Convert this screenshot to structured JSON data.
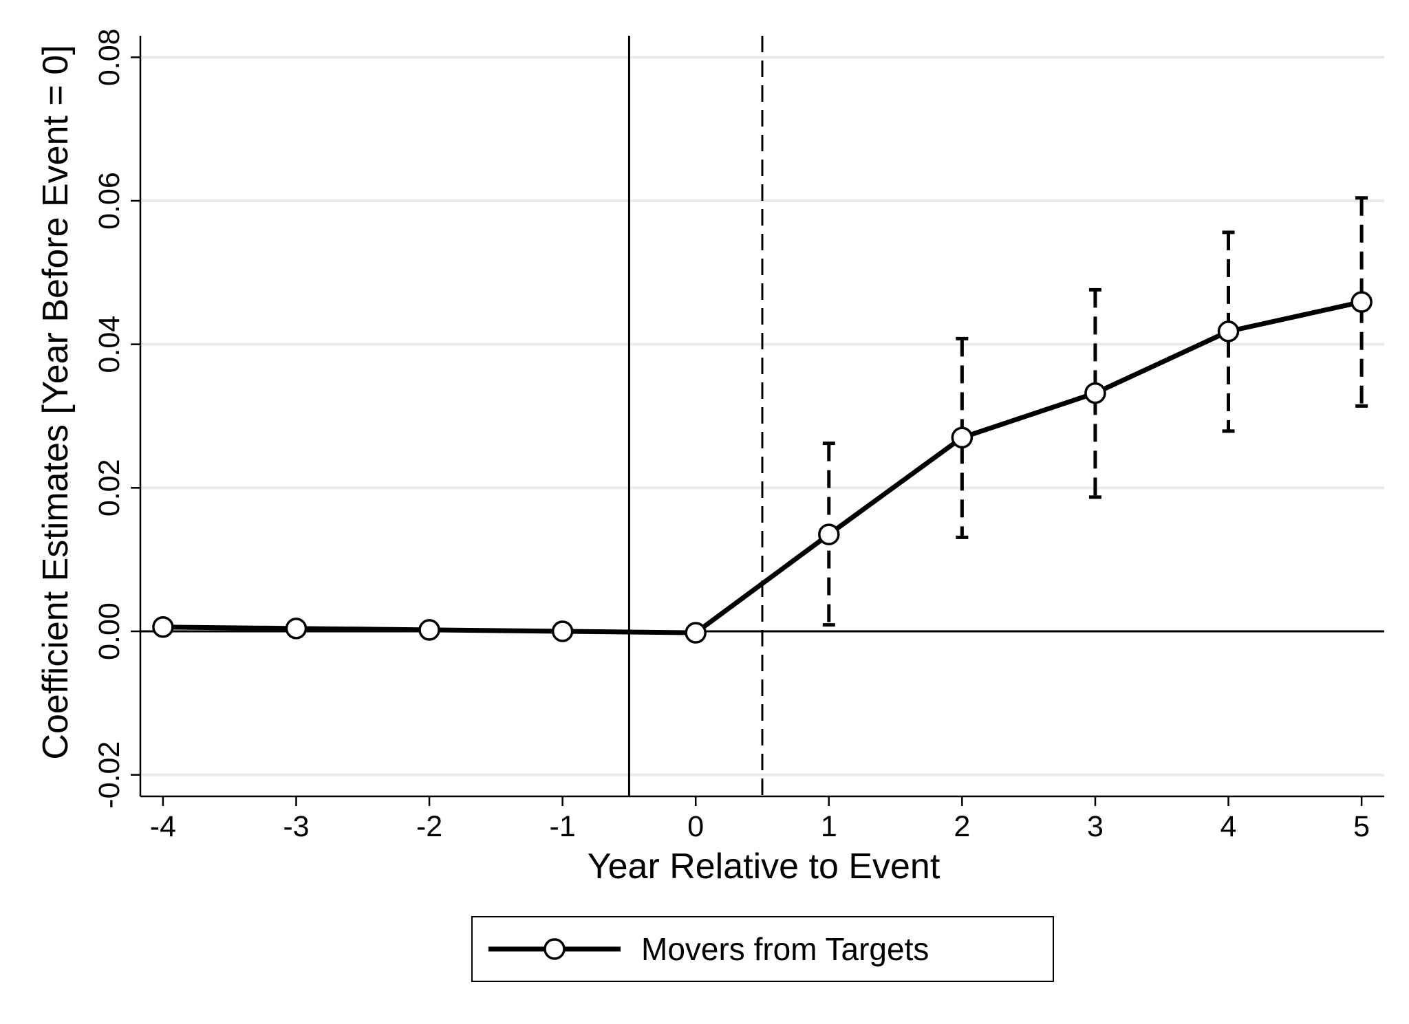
{
  "chart_data": {
    "type": "line",
    "xlabel": "Year Relative to Event",
    "ylabel": "Coefficient Estimates [Year Before Event = 0]",
    "x": [
      -4,
      -3,
      -2,
      -1,
      0,
      1,
      2,
      3,
      4,
      5
    ],
    "x_tick_labels": [
      "-4",
      "-3",
      "-2",
      "-1",
      "0",
      "1",
      "2",
      "3",
      "4",
      "5"
    ],
    "xlim": [
      -4.17,
      5.17
    ],
    "ylim": [
      -0.023,
      0.083
    ],
    "y_ticks": [
      -0.02,
      0.0,
      0.02,
      0.04,
      0.06,
      0.08
    ],
    "y_tick_labels": [
      "-0.02",
      "0.00",
      "0.02",
      "0.04",
      "0.06",
      "0.08"
    ],
    "grid": true,
    "series": [
      {
        "name": "Movers from Targets",
        "color": "#000000",
        "marker": "hollow-circle",
        "values": [
          0.0006,
          0.0004,
          0.0002,
          0.0,
          -0.0002,
          0.0135,
          0.027,
          0.0332,
          0.0418,
          0.0459
        ],
        "ci_low": [
          null,
          null,
          null,
          null,
          null,
          0.0009,
          0.0131,
          0.0187,
          0.0279,
          0.0314
        ],
        "ci_high": [
          null,
          null,
          null,
          null,
          null,
          0.0262,
          0.0408,
          0.0476,
          0.0556,
          0.0604
        ]
      }
    ],
    "reference_lines": {
      "horizontal_y": 0.0,
      "vertical_solid_x": -0.5,
      "vertical_dashed_x": 0.5
    },
    "legend": {
      "position": "bottom-center",
      "entries": [
        "Movers from Targets"
      ]
    }
  }
}
